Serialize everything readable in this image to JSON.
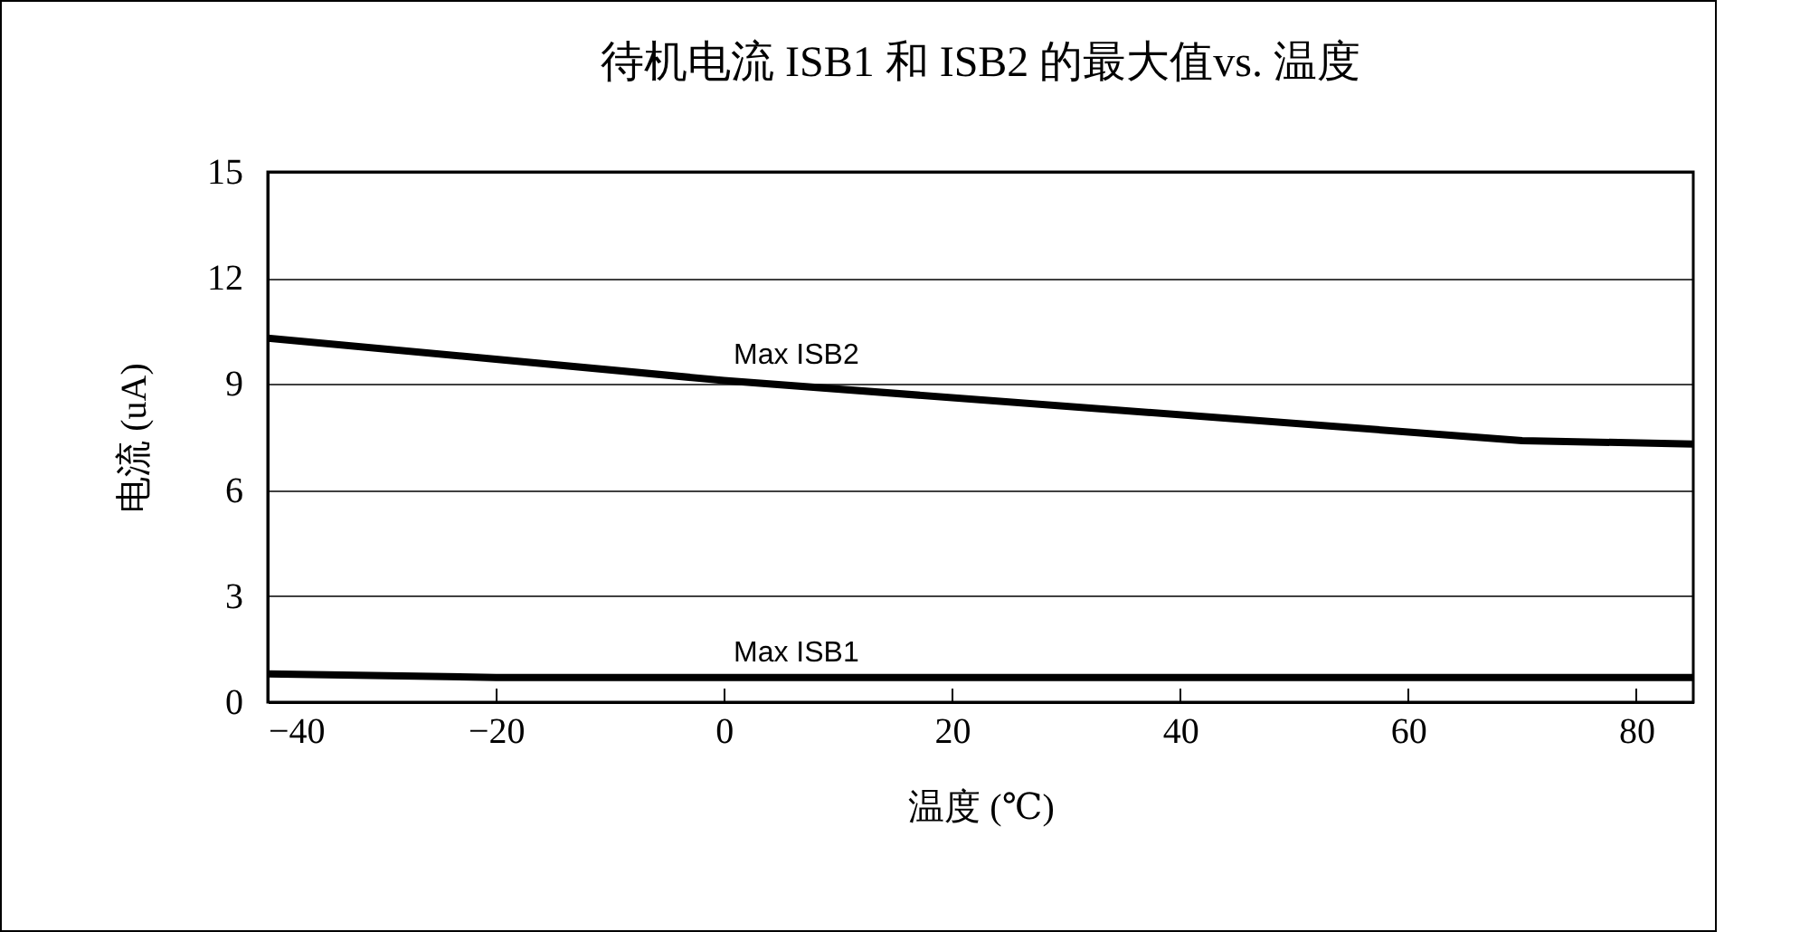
{
  "chart_data": {
    "type": "line",
    "title": "待机电流 ISB1 和 ISB2 的最大值vs. 温度",
    "xlabel": "温度 (℃)",
    "ylabel": "电流 (uA)",
    "xlim": [
      -40,
      85
    ],
    "xticks": [
      -40,
      -20,
      0,
      20,
      40,
      60,
      80
    ],
    "ylim": [
      0,
      15
    ],
    "yticks": [
      0,
      3,
      6,
      9,
      12,
      15
    ],
    "grid": "y",
    "legend": false,
    "line_style": "solid",
    "series": [
      {
        "name": "Max ISB2",
        "color": "#000000",
        "x": [
          -40,
          -20,
          0,
          70,
          85
        ],
        "values": [
          10.3,
          9.7,
          9.1,
          7.4,
          7.3
        ]
      },
      {
        "name": "Max ISB1",
        "color": "#000000",
        "x": [
          -40,
          -20,
          0,
          70,
          85
        ],
        "values": [
          0.8,
          0.7,
          0.7,
          0.7,
          0.7
        ]
      }
    ]
  }
}
